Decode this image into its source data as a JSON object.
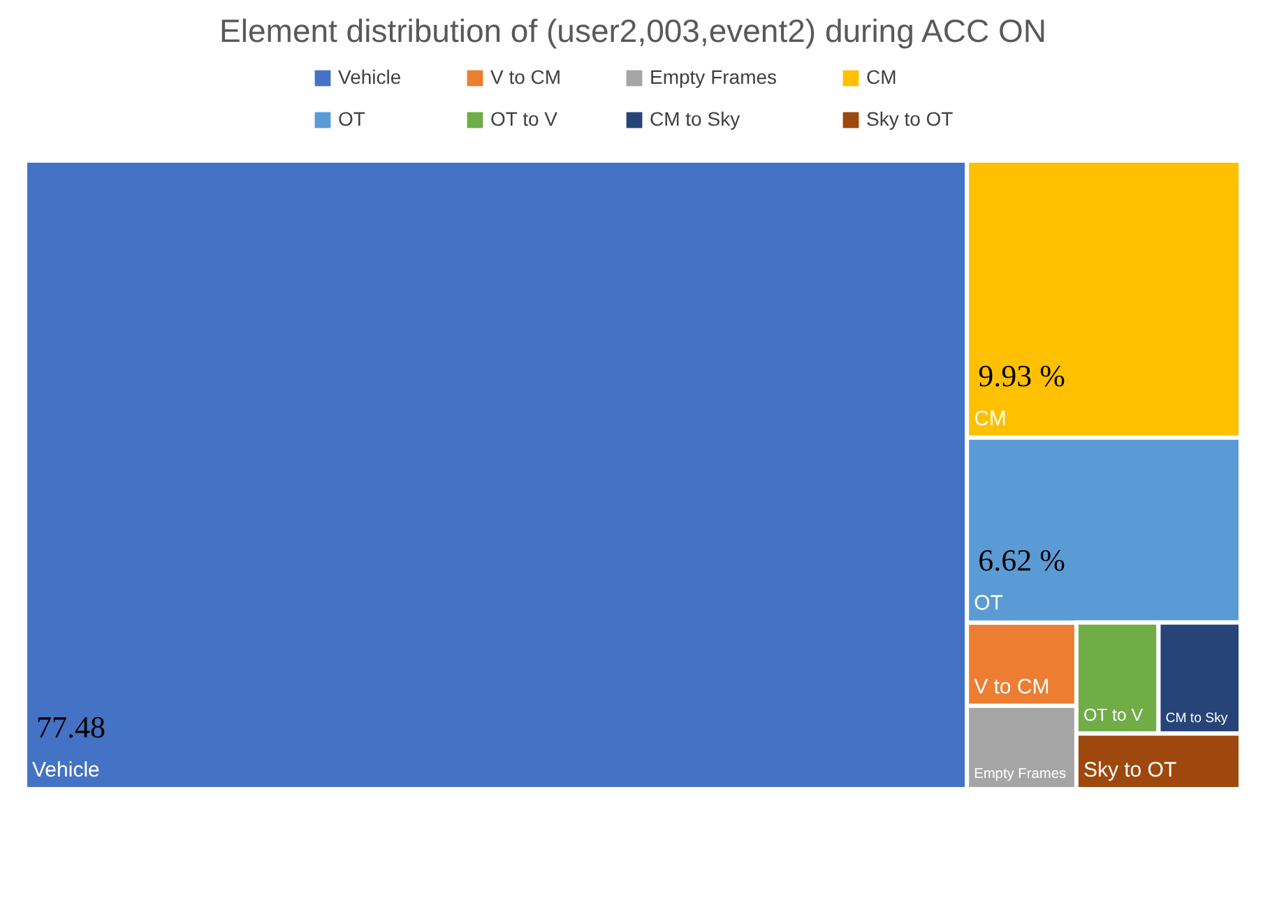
{
  "chart_data": {
    "type": "other",
    "title": "Element distribution of (user2,003,event2) during ACC ON",
    "categories": [
      "Vehicle",
      "V to CM",
      "Empty Frames",
      "CM",
      "OT",
      "OT to V",
      "CM to Sky",
      "Sky to OT"
    ],
    "values": [
      77.48,
      null,
      null,
      9.93,
      6.62,
      null,
      null,
      null
    ],
    "value_labels": [
      "77.48",
      null,
      null,
      "9.93 %",
      "6.62 %",
      null,
      null,
      null
    ],
    "colors": [
      "#4472c4",
      "#ed7d31",
      "#a5a5a5",
      "#ffc000",
      "#5b9bd5",
      "#70ad47",
      "#264478",
      "#9e480e"
    ]
  }
}
